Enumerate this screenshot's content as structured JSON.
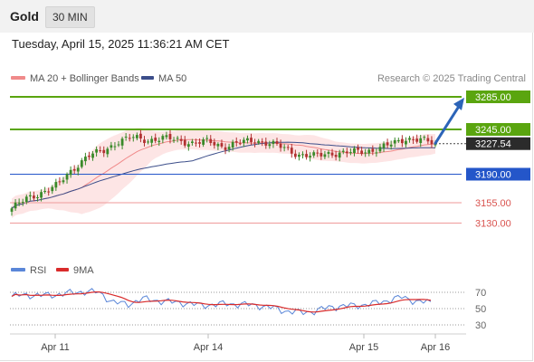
{
  "header": {
    "asset": "Gold",
    "timeframe": "30 MIN",
    "datetime": "Tuesday, April 15, 2025 11:36:21 AM CET"
  },
  "legend": {
    "ma20": "MA 20 + Bollinger Bands",
    "ma50": "MA 50",
    "credit": "Research © 2025 Trading Central",
    "rsi": "RSI",
    "rsi_ma": "9MA"
  },
  "colors": {
    "resistance": "#5aa50f",
    "support": "#2456c9",
    "target_band": "#ef9a9a",
    "ma20": "#f08a8a",
    "ma50": "#3c4e8a",
    "bollinger_fill": "#fde0e0",
    "candle_up": "#3a8a2a",
    "candle_down": "#b23232",
    "arrow": "#2c64b8",
    "rsi_line": "#5a86d8",
    "rsi_ma": "#d92b2b",
    "price_tag": "#2b2b2b"
  },
  "chart_data": {
    "type": "candlestick",
    "x_ticks": [
      "Apr 11",
      "Apr 14",
      "Apr 15",
      "Apr 16"
    ],
    "y_axis_scale_note": "price",
    "current_price": "3227.54",
    "levels": [
      {
        "value": 3285.0,
        "label": "3285.00",
        "kind": "resistance-target"
      },
      {
        "value": 3245.0,
        "label": "3245.00",
        "kind": "resistance"
      },
      {
        "value": 3190.0,
        "label": "3190.00",
        "kind": "support"
      },
      {
        "value": 3155.0,
        "label": "3155.00",
        "kind": "support-secondary"
      },
      {
        "value": 3130.0,
        "label": "3130.00",
        "kind": "support-secondary"
      }
    ],
    "close_path": [
      3148,
      3160,
      3168,
      3176,
      3196,
      3212,
      3218,
      3230,
      3235,
      3232,
      3234,
      3232,
      3228,
      3230,
      3224,
      3228,
      3232,
      3228,
      3222,
      3214,
      3212,
      3216,
      3216,
      3218,
      3220,
      3226,
      3234,
      3232,
      3227.54
    ],
    "rsi": {
      "levels": [
        70,
        50,
        30
      ],
      "path": [
        65,
        67,
        66,
        67,
        69,
        71,
        70,
        58,
        55,
        62,
        60,
        58,
        57,
        54,
        55,
        56,
        55,
        54,
        51,
        47,
        45,
        47,
        52,
        53,
        54,
        56,
        60,
        64,
        59,
        57
      ]
    }
  }
}
